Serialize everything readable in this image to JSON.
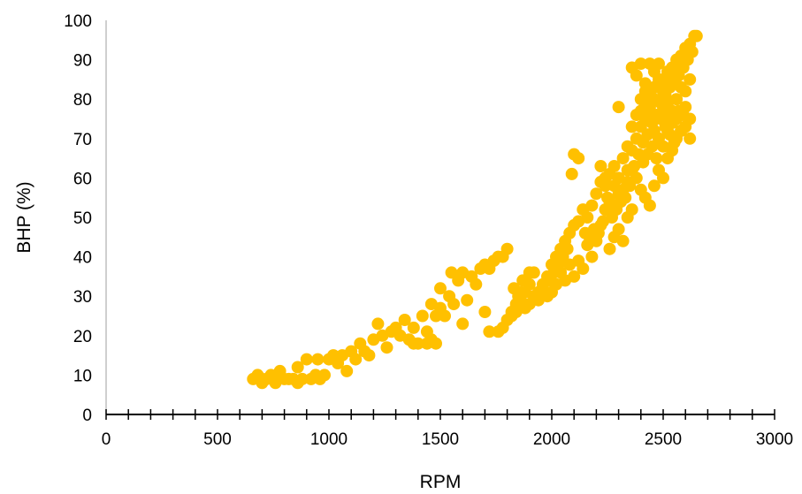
{
  "chart_data": {
    "type": "scatter",
    "title": "",
    "xlabel": "RPM",
    "ylabel": "BHP (%)",
    "xlim": [
      0,
      3000
    ],
    "ylim": [
      0,
      100
    ],
    "x_ticks": [
      "0",
      "500",
      "1000",
      "1500",
      "2000",
      "2500",
      "3000"
    ],
    "y_ticks": [
      "0",
      "10",
      "20",
      "30",
      "40",
      "50",
      "60",
      "70",
      "80",
      "90",
      "100"
    ],
    "grid": false,
    "legend": "none",
    "marker_color": "#FFC000",
    "series": [
      {
        "points": [
          [
            660,
            9
          ],
          [
            680,
            10
          ],
          [
            700,
            9
          ],
          [
            720,
            9
          ],
          [
            740,
            10
          ],
          [
            760,
            9
          ],
          [
            780,
            11
          ],
          [
            800,
            9
          ],
          [
            820,
            9
          ],
          [
            840,
            9
          ],
          [
            860,
            12
          ],
          [
            880,
            9
          ],
          [
            900,
            14
          ],
          [
            920,
            9
          ],
          [
            940,
            10
          ],
          [
            960,
            9
          ],
          [
            980,
            10
          ],
          [
            700,
            8
          ],
          [
            760,
            8
          ],
          [
            860,
            8
          ],
          [
            950,
            14
          ],
          [
            1000,
            14
          ],
          [
            1020,
            15
          ],
          [
            1040,
            13
          ],
          [
            1060,
            15
          ],
          [
            1080,
            11
          ],
          [
            1100,
            16
          ],
          [
            1120,
            14
          ],
          [
            1140,
            18
          ],
          [
            1160,
            16
          ],
          [
            1180,
            15
          ],
          [
            1200,
            19
          ],
          [
            1220,
            23
          ],
          [
            1240,
            20
          ],
          [
            1260,
            17
          ],
          [
            1280,
            21
          ],
          [
            1300,
            22
          ],
          [
            1320,
            20
          ],
          [
            1340,
            24
          ],
          [
            1360,
            19
          ],
          [
            1380,
            22
          ],
          [
            1400,
            18
          ],
          [
            1420,
            25
          ],
          [
            1440,
            21
          ],
          [
            1460,
            19
          ],
          [
            1480,
            25
          ],
          [
            1500,
            27
          ],
          [
            1520,
            25
          ],
          [
            1540,
            30
          ],
          [
            1560,
            28
          ],
          [
            1580,
            34
          ],
          [
            1600,
            36
          ],
          [
            1620,
            29
          ],
          [
            1640,
            35
          ],
          [
            1660,
            33
          ],
          [
            1680,
            37
          ],
          [
            1700,
            38
          ],
          [
            1720,
            37
          ],
          [
            1740,
            39
          ],
          [
            1760,
            40
          ],
          [
            1780,
            40
          ],
          [
            1800,
            42
          ],
          [
            1600,
            23
          ],
          [
            1720,
            21
          ],
          [
            1700,
            26
          ],
          [
            1500,
            32
          ],
          [
            1550,
            36
          ],
          [
            1460,
            28
          ],
          [
            1380,
            18
          ],
          [
            1440,
            18
          ],
          [
            1480,
            18
          ],
          [
            1760,
            21
          ],
          [
            1780,
            22
          ],
          [
            1800,
            24
          ],
          [
            1820,
            26
          ],
          [
            1840,
            28
          ],
          [
            1860,
            29
          ],
          [
            1880,
            31
          ],
          [
            1900,
            33
          ],
          [
            1920,
            36
          ],
          [
            1940,
            31
          ],
          [
            1960,
            33
          ],
          [
            1980,
            35
          ],
          [
            2000,
            38
          ],
          [
            2020,
            40
          ],
          [
            2040,
            42
          ],
          [
            2060,
            44
          ],
          [
            2080,
            46
          ],
          [
            2100,
            48
          ],
          [
            2120,
            49
          ],
          [
            2140,
            52
          ],
          [
            2160,
            50
          ],
          [
            2180,
            53
          ],
          [
            2200,
            56
          ],
          [
            2220,
            59
          ],
          [
            2240,
            58
          ],
          [
            2260,
            61
          ],
          [
            2280,
            63
          ],
          [
            2300,
            60
          ],
          [
            2320,
            65
          ],
          [
            2340,
            62
          ],
          [
            2360,
            67
          ],
          [
            2380,
            70
          ],
          [
            2400,
            73
          ],
          [
            2420,
            75
          ],
          [
            2440,
            78
          ],
          [
            2460,
            80
          ],
          [
            2480,
            83
          ],
          [
            2500,
            85
          ],
          [
            2520,
            87
          ],
          [
            2540,
            88
          ],
          [
            2560,
            90
          ],
          [
            2580,
            91
          ],
          [
            2600,
            93
          ],
          [
            2620,
            94
          ],
          [
            2640,
            96
          ],
          [
            2650,
            96
          ],
          [
            2360,
            88
          ],
          [
            2380,
            86
          ],
          [
            2400,
            89
          ],
          [
            2420,
            84
          ],
          [
            2440,
            89
          ],
          [
            2460,
            87
          ],
          [
            2480,
            89
          ],
          [
            2500,
            82
          ],
          [
            2520,
            79
          ],
          [
            2540,
            77
          ],
          [
            2560,
            75
          ],
          [
            2580,
            72
          ],
          [
            2600,
            78
          ],
          [
            2620,
            70
          ],
          [
            2380,
            60
          ],
          [
            2400,
            57
          ],
          [
            2420,
            55
          ],
          [
            2440,
            53
          ],
          [
            2460,
            58
          ],
          [
            2480,
            62
          ],
          [
            2500,
            60
          ],
          [
            2520,
            65
          ],
          [
            2540,
            67
          ],
          [
            2560,
            70
          ],
          [
            2580,
            72
          ],
          [
            2300,
            47
          ],
          [
            2320,
            44
          ],
          [
            2340,
            50
          ],
          [
            2360,
            52
          ],
          [
            2260,
            42
          ],
          [
            2280,
            45
          ],
          [
            2240,
            52
          ],
          [
            2220,
            48
          ],
          [
            2200,
            44
          ],
          [
            2180,
            40
          ],
          [
            2160,
            43
          ],
          [
            2140,
            37
          ],
          [
            2120,
            39
          ],
          [
            2100,
            35
          ],
          [
            2080,
            38
          ],
          [
            2060,
            34
          ],
          [
            2040,
            36
          ],
          [
            2020,
            33
          ],
          [
            2000,
            31
          ],
          [
            1980,
            30
          ],
          [
            2050,
            40
          ],
          [
            2070,
            42
          ],
          [
            2090,
            61
          ],
          [
            2100,
            66
          ],
          [
            2120,
            65
          ],
          [
            2300,
            78
          ],
          [
            2320,
            57
          ],
          [
            2340,
            59
          ],
          [
            2360,
            62
          ],
          [
            2300,
            56
          ],
          [
            2280,
            58
          ],
          [
            2260,
            54
          ],
          [
            2220,
            63
          ],
          [
            2240,
            60
          ],
          [
            2270,
            50
          ],
          [
            2290,
            52
          ],
          [
            2310,
            54
          ],
          [
            2330,
            55
          ],
          [
            2350,
            58
          ],
          [
            2370,
            63
          ],
          [
            2390,
            66
          ],
          [
            2410,
            69
          ],
          [
            2430,
            71
          ],
          [
            2450,
            74
          ],
          [
            2470,
            76
          ],
          [
            2490,
            79
          ],
          [
            2510,
            81
          ],
          [
            2530,
            83
          ],
          [
            2550,
            85
          ],
          [
            2570,
            86
          ],
          [
            2590,
            88
          ],
          [
            2610,
            90
          ],
          [
            2630,
            92
          ],
          [
            2400,
            80
          ],
          [
            2420,
            82
          ],
          [
            2440,
            76
          ],
          [
            2460,
            72
          ],
          [
            2480,
            70
          ],
          [
            2500,
            68
          ],
          [
            2520,
            72
          ],
          [
            2540,
            74
          ],
          [
            2560,
            80
          ],
          [
            2580,
            83
          ],
          [
            2590,
            76
          ],
          [
            2600,
            73
          ],
          [
            2620,
            75
          ],
          [
            2410,
            64
          ],
          [
            2430,
            66
          ],
          [
            2450,
            68
          ],
          [
            2470,
            65
          ],
          [
            2490,
            75
          ],
          [
            2510,
            73
          ],
          [
            2530,
            71
          ],
          [
            2550,
            69
          ],
          [
            2570,
            77
          ],
          [
            2600,
            82
          ],
          [
            2620,
            85
          ],
          [
            2340,
            68
          ],
          [
            2360,
            73
          ],
          [
            2380,
            76
          ],
          [
            2400,
            77
          ],
          [
            2420,
            79
          ],
          [
            2440,
            81
          ],
          [
            2460,
            83
          ],
          [
            2480,
            85
          ],
          [
            2500,
            78
          ],
          [
            2520,
            76
          ],
          [
            2210,
            46
          ],
          [
            2230,
            49
          ],
          [
            2250,
            55
          ],
          [
            2190,
            47
          ],
          [
            2170,
            45
          ],
          [
            2150,
            46
          ],
          [
            1960,
            32
          ],
          [
            1990,
            34
          ],
          [
            2010,
            36
          ],
          [
            2030,
            38
          ],
          [
            1940,
            29
          ],
          [
            1920,
            30
          ],
          [
            1900,
            28
          ],
          [
            1880,
            27
          ],
          [
            1860,
            31
          ],
          [
            1840,
            26
          ],
          [
            1820,
            25
          ],
          [
            1900,
            36
          ],
          [
            1870,
            34
          ],
          [
            1850,
            30
          ],
          [
            1830,
            32
          ]
        ]
      }
    ]
  }
}
